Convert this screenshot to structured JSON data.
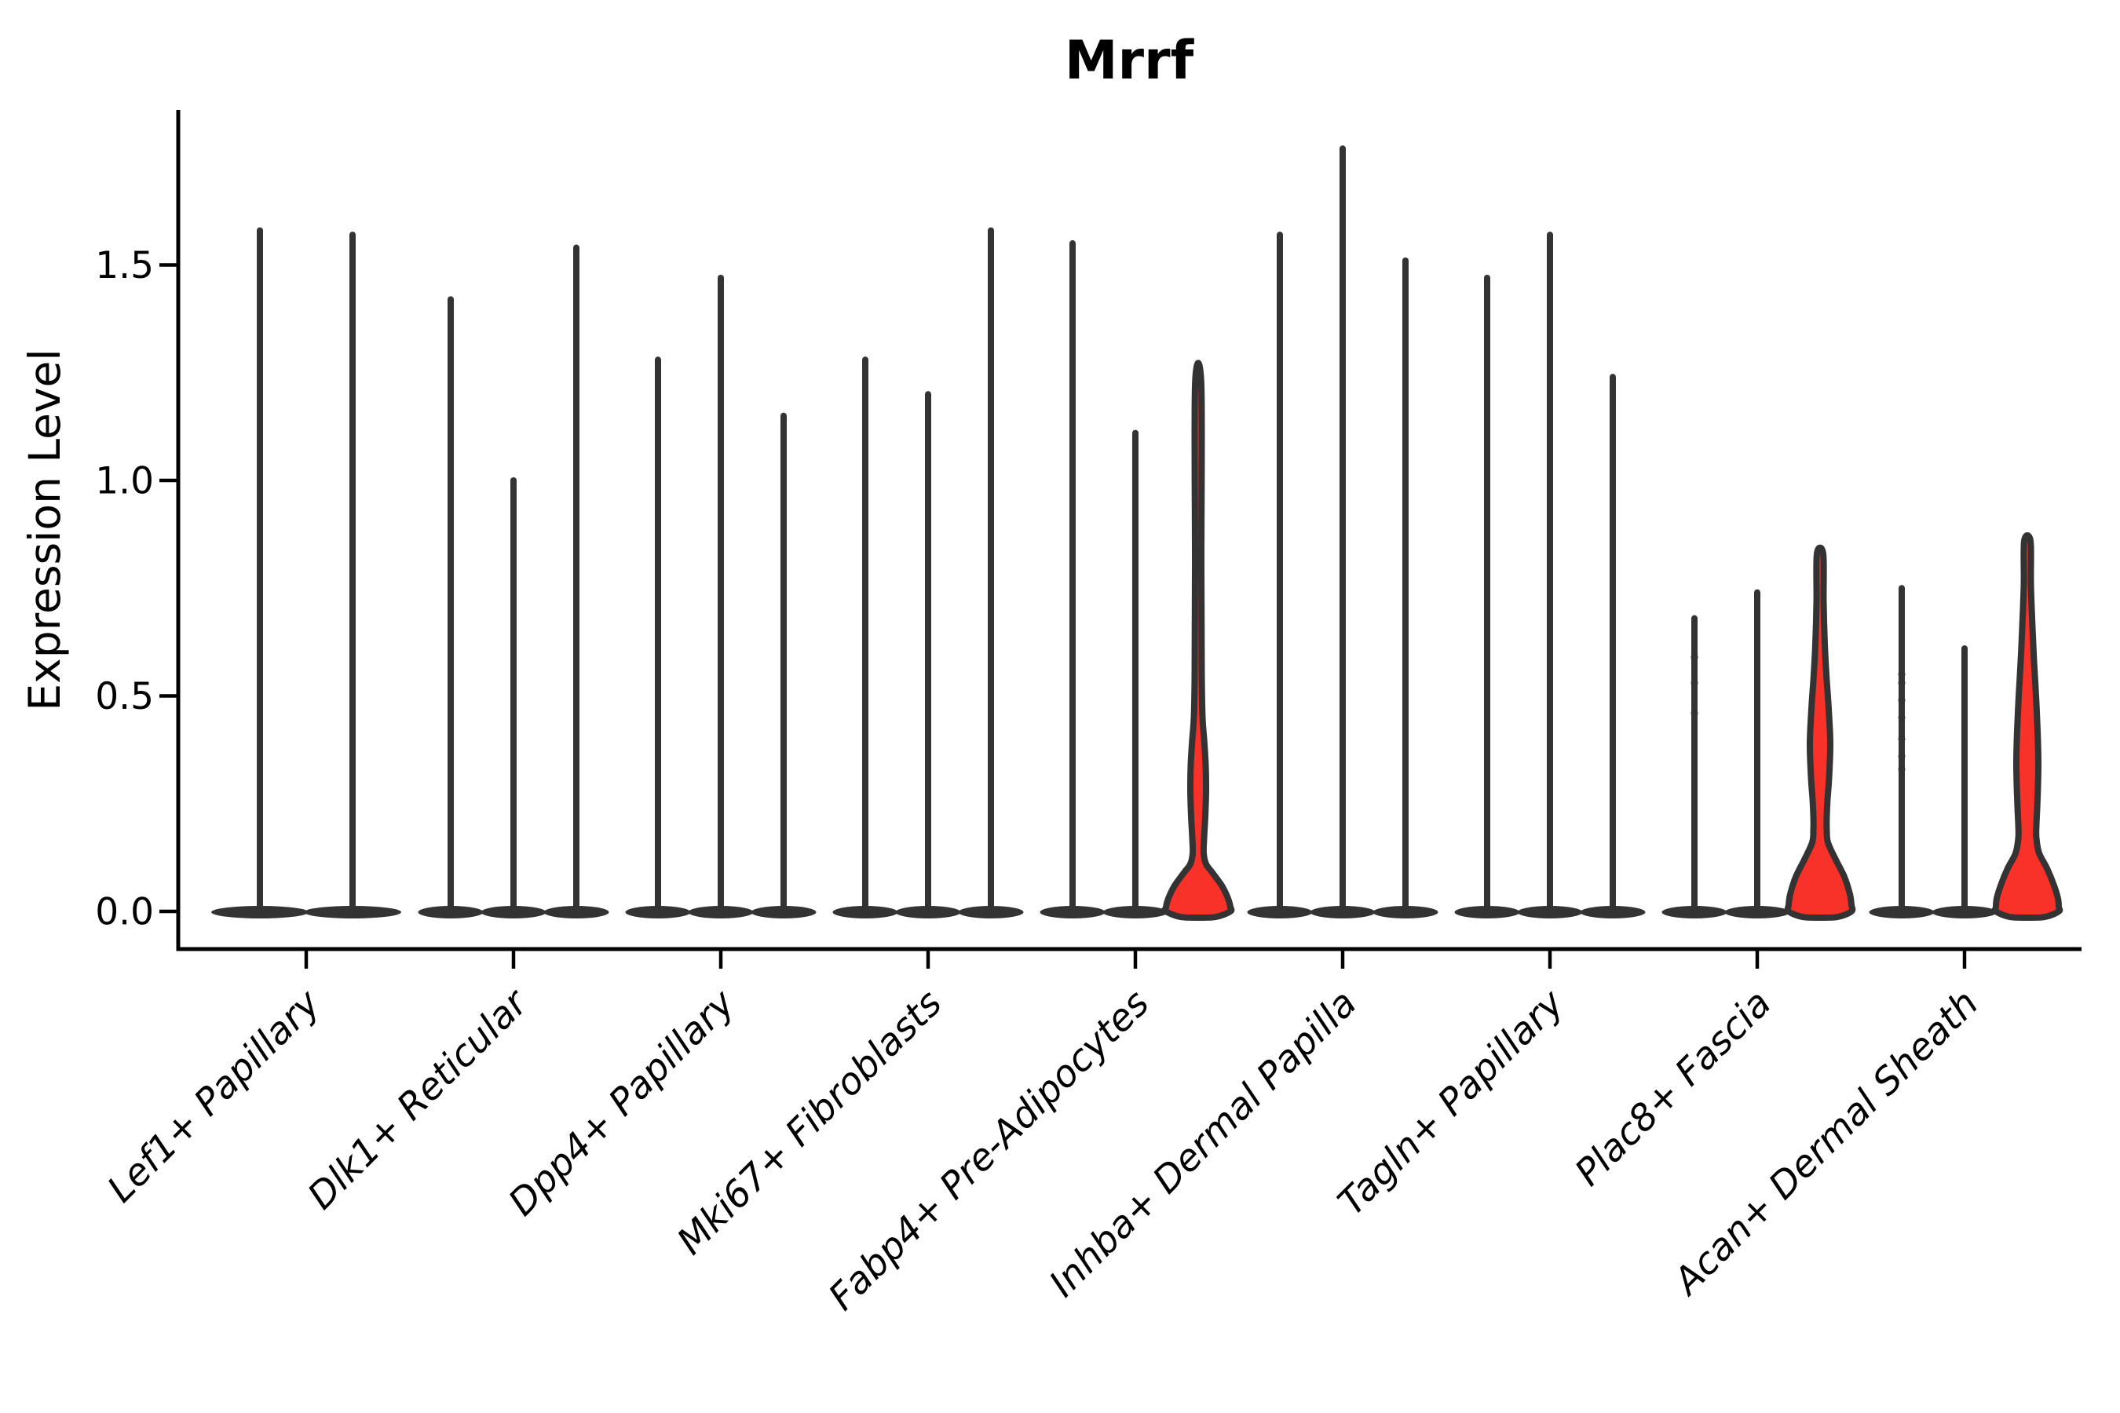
{
  "colors": {
    "violin_fill_highlight": "#f83228",
    "violin_outline": "#333333",
    "axis": "#000000",
    "text": "#000000",
    "background": "#ffffff"
  },
  "chart_data": {
    "type": "violin",
    "title": "Mrrf",
    "ylabel": "Expression Level",
    "xlabel": "",
    "ylim": [
      -0.09,
      1.86
    ],
    "yticks": [
      0.0,
      0.5,
      1.0,
      1.5
    ],
    "ytick_labels": [
      "0.0",
      "0.5",
      "1.0",
      "1.5"
    ],
    "grid": false,
    "legend": null,
    "categories": [
      "Lef1+ Papillary",
      "Dlk1+ Reticular",
      "Dpp4+ Papillary",
      "Mki67+ Fibroblasts",
      "Fabp4+ Pre-Adipocytes",
      "Inhba+ Dermal Papilla",
      "Tagln+ Papillary",
      "Plac8+ Fascia",
      "Acan+ Dermal Sheath"
    ],
    "groups": [
      {
        "label": "Lef1+ Papillary",
        "violins": [
          {
            "max": 1.58,
            "highlight": false,
            "dots": []
          },
          {
            "max": 1.57,
            "highlight": false,
            "dots": []
          }
        ]
      },
      {
        "label": "Dlk1+ Reticular",
        "violins": [
          {
            "max": 1.42,
            "highlight": false,
            "dots": []
          },
          {
            "max": 1.0,
            "highlight": false,
            "dots": []
          },
          {
            "max": 1.54,
            "highlight": false,
            "dots": []
          }
        ]
      },
      {
        "label": "Dpp4+ Papillary",
        "violins": [
          {
            "max": 1.28,
            "highlight": false,
            "dots": []
          },
          {
            "max": 1.47,
            "highlight": false,
            "dots": []
          },
          {
            "max": 1.15,
            "highlight": false,
            "dots": []
          }
        ]
      },
      {
        "label": "Mki67+ Fibroblasts",
        "violins": [
          {
            "max": 1.28,
            "highlight": false,
            "dots": []
          },
          {
            "max": 1.2,
            "highlight": false,
            "dots": []
          },
          {
            "max": 1.58,
            "highlight": false,
            "dots": []
          }
        ]
      },
      {
        "label": "Fabp4+ Pre-Adipocytes",
        "violins": [
          {
            "max": 1.55,
            "highlight": false,
            "dots": []
          },
          {
            "max": 1.11,
            "highlight": false,
            "dots": []
          },
          {
            "max": 1.22,
            "highlight": true,
            "dots": [],
            "profile": [
              [
                1.22,
                4
              ],
              [
                0.8,
                4
              ],
              [
                0.55,
                4.5
              ],
              [
                0.45,
                5.5
              ],
              [
                0.4,
                7.5
              ],
              [
                0.34,
                9.5
              ],
              [
                0.28,
                10
              ],
              [
                0.22,
                9
              ],
              [
                0.17,
                7.5
              ],
              [
                0.135,
                7
              ],
              [
                0.11,
                10
              ],
              [
                0.09,
                18
              ],
              [
                0.06,
                30
              ],
              [
                0.03,
                38
              ],
              [
                0.01,
                41
              ],
              [
                0,
                41
              ]
            ]
          }
        ]
      },
      {
        "label": "Inhba+ Dermal Papilla",
        "violins": [
          {
            "max": 1.57,
            "highlight": false,
            "dots": []
          },
          {
            "max": 1.77,
            "highlight": false,
            "dots": []
          },
          {
            "max": 1.51,
            "highlight": false,
            "dots": []
          }
        ]
      },
      {
        "label": "Tagln+ Papillary",
        "violins": [
          {
            "max": 1.47,
            "highlight": false,
            "dots": []
          },
          {
            "max": 1.57,
            "highlight": false,
            "dots": []
          },
          {
            "max": 1.24,
            "highlight": false,
            "dots": []
          }
        ]
      },
      {
        "label": "Plac8+ Fascia",
        "violins": [
          {
            "max": 0.68,
            "highlight": false,
            "dots": [
              0.46,
              0.53,
              0.59
            ]
          },
          {
            "max": 0.74,
            "highlight": false,
            "dots": []
          },
          {
            "max": 0.83,
            "highlight": true,
            "dots": [],
            "profile": [
              [
                0.83,
                4
              ],
              [
                0.72,
                4.5
              ],
              [
                0.62,
                6
              ],
              [
                0.55,
                8
              ],
              [
                0.47,
                11
              ],
              [
                0.39,
                13
              ],
              [
                0.31,
                11.5
              ],
              [
                0.26,
                9.5
              ],
              [
                0.22,
                8.5
              ],
              [
                0.19,
                8.5
              ],
              [
                0.16,
                10
              ],
              [
                0.12,
                20
              ],
              [
                0.08,
                31
              ],
              [
                0.04,
                38
              ],
              [
                0.015,
                40
              ],
              [
                0,
                40
              ]
            ]
          }
        ]
      },
      {
        "label": "Acan+ Dermal Sheath",
        "violins": [
          {
            "max": 0.75,
            "highlight": false,
            "dots": [
              0.33,
              0.36,
              0.4,
              0.45,
              0.49,
              0.53,
              0.55
            ]
          },
          {
            "max": 0.61,
            "highlight": false,
            "dots": []
          },
          {
            "max": 0.86,
            "highlight": true,
            "dots": [],
            "profile": [
              [
                0.86,
                4
              ],
              [
                0.76,
                4.5
              ],
              [
                0.66,
                6.5
              ],
              [
                0.58,
                8.5
              ],
              [
                0.5,
                11
              ],
              [
                0.42,
                13
              ],
              [
                0.35,
                14
              ],
              [
                0.29,
                13.5
              ],
              [
                0.24,
                12.5
              ],
              [
                0.2,
                11.5
              ],
              [
                0.17,
                11.5
              ],
              [
                0.135,
                15
              ],
              [
                0.1,
                25
              ],
              [
                0.06,
                34
              ],
              [
                0.03,
                39
              ],
              [
                0.01,
                40
              ],
              [
                0,
                40
              ]
            ]
          }
        ]
      }
    ]
  }
}
